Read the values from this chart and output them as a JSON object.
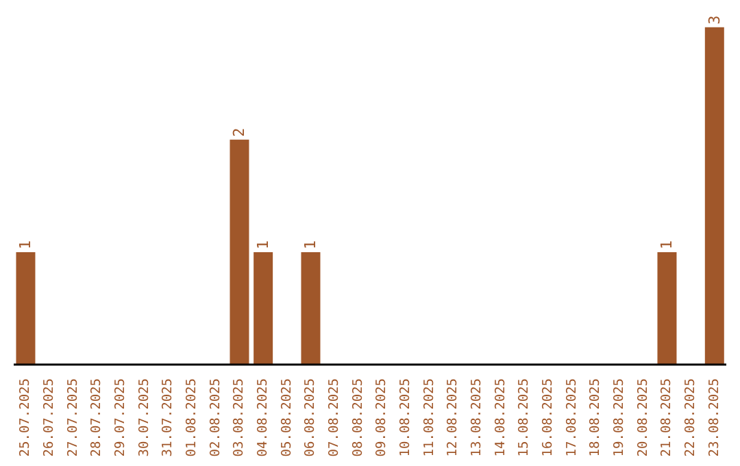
{
  "chart_data": {
    "type": "bar",
    "categories": [
      "25.07.2025",
      "26.07.2025",
      "27.07.2025",
      "28.07.2025",
      "29.07.2025",
      "30.07.2025",
      "31.07.2025",
      "01.08.2025",
      "02.08.2025",
      "03.08.2025",
      "04.08.2025",
      "05.08.2025",
      "06.08.2025",
      "07.08.2025",
      "08.08.2025",
      "09.08.2025",
      "10.08.2025",
      "11.08.2025",
      "12.08.2025",
      "13.08.2025",
      "14.08.2025",
      "15.08.2025",
      "16.08.2025",
      "17.08.2025",
      "18.08.2025",
      "19.08.2025",
      "20.08.2025",
      "21.08.2025",
      "22.08.2025",
      "23.08.2025"
    ],
    "values": [
      1,
      0,
      0,
      0,
      0,
      0,
      0,
      0,
      0,
      2,
      1,
      0,
      1,
      0,
      0,
      0,
      0,
      0,
      0,
      0,
      0,
      0,
      0,
      0,
      0,
      0,
      0,
      1,
      0,
      3
    ],
    "value_labels": [
      "1",
      null,
      null,
      null,
      null,
      null,
      null,
      null,
      null,
      "2",
      "1",
      null,
      "1",
      null,
      null,
      null,
      null,
      null,
      null,
      null,
      null,
      null,
      null,
      null,
      null,
      null,
      null,
      "1",
      null,
      "3"
    ],
    "color": "#a0572a",
    "grid": false,
    "legend": false
  }
}
